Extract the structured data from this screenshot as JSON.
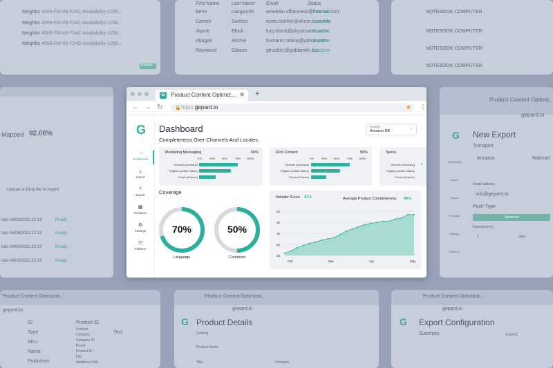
{
  "background": {
    "top_left": {
      "rows": [
        "Neighbo",
        "Neighbo",
        "Neighbo",
        "Neighbo"
      ],
      "row_text": "4569-FM-49-F24C-Availability-1258...",
      "button": "Results"
    },
    "top_center": {
      "headers": [
        "First Name",
        "Last Name",
        "Email",
        "Status"
      ],
      "rows": [
        [
          "Berni",
          "Langworth",
          "amehelu.sffrancesk@hotmail.com",
          "Inactive"
        ],
        [
          "Carmin",
          "Suelest",
          "ronta.hoeher@ahorn.com.info",
          "Inactive"
        ],
        [
          "Jayme",
          "Block",
          "lucy.block@physicsweb.com",
          "Inactive"
        ],
        [
          "Abagail",
          "Ritchie",
          "humanrc.retina@yahoo.com",
          "Inactive"
        ],
        [
          "Raymond",
          "Gibson",
          "gtruelle1@goldsmith.biz",
          "Inactive"
        ]
      ]
    },
    "top_right": {
      "rows": [
        "NOTEBOOK COMPUTER",
        "NOTEBOOK COMPUTER",
        "NOTEBOOK COMPUTER",
        "NOTEBOOK COMPUTER"
      ]
    },
    "mid_left": {
      "percent": "92.06%",
      "label": "Mapped",
      "upload": "Upload or Drop file to import",
      "rows": [
        "tuto 04/06/2021 22:13",
        "tuto 04/06/2021 22:13",
        "tuto 04/06/2021 22:13",
        "tuto 04/09/2021 22:13"
      ],
      "status": "Ready"
    },
    "mid_right": {
      "tab": "Product Content Optimiz...",
      "url": "gepard.io",
      "title": "New Export",
      "section": "Transport",
      "options": [
        "Amazon",
        "Walmart"
      ],
      "email_label": "Email address",
      "email": "info@gepard.io",
      "push": "Push Type",
      "push_value": "Autopush",
      "repeat": "Repeat every",
      "every_value": "2",
      "unit_value": "days",
      "nav": [
        "Dashboard",
        "Import",
        "Export",
        "Products",
        "Settings",
        "Platform"
      ]
    },
    "bottom_left": {
      "tab": "Product Content Optimizat...",
      "url": "gepard.io",
      "fields": [
        "ID",
        "Type",
        "SKU",
        "Name",
        "Published"
      ],
      "options": [
        "Product ID",
        "Feature",
        "Category",
        "Category ID",
        "Brand",
        "Product ID",
        "Info",
        "Additional Info"
      ],
      "select": "Text"
    },
    "bottom_center": {
      "tab": "Product Content Optimizat...",
      "url": "gepard.io",
      "title": "Product Details",
      "fields": [
        "Catalog",
        "Product Name",
        "Title",
        "Category"
      ]
    },
    "bottom_right": {
      "tab": "Product Content Optimizat...",
      "url": "gepard.io",
      "title": "Export Configuration",
      "section": "Summary",
      "exports": "Exports"
    }
  },
  "browser": {
    "tab_title": "Product Content Optimiz...",
    "url_protocol": "https://",
    "url_host": "gepard.io"
  },
  "sidebar": {
    "logo": "G",
    "items": [
      {
        "label": "Dashboard",
        "icon": "◔",
        "active": true
      },
      {
        "label": "Import",
        "icon": "⤓"
      },
      {
        "label": "Export",
        "icon": "⤒"
      },
      {
        "label": "Products",
        "icon": "▦"
      },
      {
        "label": "Settings",
        "icon": "⚙"
      },
      {
        "label": "Platform",
        "icon": "☷"
      }
    ]
  },
  "header": {
    "title": "Dashboard",
    "retailer_label": "Retailer",
    "retailer_value": "Amazon DE"
  },
  "completeness": {
    "title": "Completeness Over Channels And Locales",
    "ticks": [
      "0%",
      "25%",
      "50%",
      "75%",
      "100%"
    ],
    "panels": [
      {
        "name": "Marketing Messaging",
        "percent": "56%",
        "rows": [
          {
            "label": "German (Germany)",
            "value": 0.8
          },
          {
            "label": "English (United States)",
            "value": 0.66
          },
          {
            "label": "French (France)",
            "value": 0.34
          }
        ]
      },
      {
        "name": "Rich Content",
        "percent": "56%",
        "rows": [
          {
            "label": "German (Germany)",
            "value": 0.8
          },
          {
            "label": "English (United States)",
            "value": 0.6
          },
          {
            "label": "French (France)",
            "value": 0.32
          }
        ]
      },
      {
        "name": "Specs",
        "percent": "",
        "rows": [
          {
            "label": "German (Germany)",
            "value": 0
          },
          {
            "label": "English (United States)",
            "value": 0
          },
          {
            "label": "French (France)",
            "value": 0
          }
        ]
      }
    ]
  },
  "coverage": {
    "title": "Coverage",
    "rings": [
      {
        "value": "70%",
        "fraction": 0.7,
        "label": "Language"
      },
      {
        "value": "50%",
        "fraction": 0.5,
        "label": "Countries"
      }
    ]
  },
  "colors": {
    "accent": "#2ab09d",
    "fill": "#a8dcd3"
  },
  "chart_data": {
    "type": "area",
    "title": "",
    "retailer_score_label": "Retailer Score",
    "retailer_score": "47.5",
    "avg_label": "Average Product Completeness",
    "avg_value": "80%",
    "x_ticks": [
      "Feb",
      "Mar",
      "Apr",
      "May"
    ],
    "y_ticks": [
      "50",
      "40",
      "30",
      "20",
      "10"
    ],
    "ylim": [
      10,
      50
    ],
    "values": [
      12,
      14,
      17,
      19,
      21,
      22,
      24,
      25,
      26,
      29,
      32,
      34,
      36,
      38,
      39,
      40,
      41,
      41,
      43,
      44,
      47,
      47
    ],
    "grid": true
  }
}
